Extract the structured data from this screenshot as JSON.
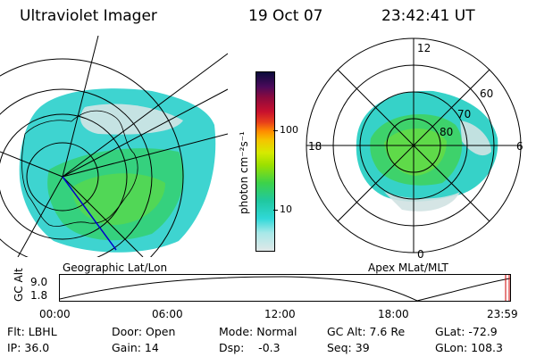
{
  "header": {
    "instrument": "Ultraviolet Imager",
    "date": "19 Oct 07",
    "time": "23:42:41 UT"
  },
  "colorbar": {
    "label": "photon cm⁻²s⁻¹",
    "ticks": [
      "100",
      "10"
    ],
    "colors": [
      "#0b0b3b",
      "#4a0a5a",
      "#8b0a3e",
      "#c8102e",
      "#e8401a",
      "#ff8c00",
      "#f5c400",
      "#d6ea00",
      "#9be000",
      "#3cd24a",
      "#20c8a0",
      "#30d8d8",
      "#a8e8e8",
      "#e0e8e8"
    ]
  },
  "left_panel": {
    "caption": "Geographic Lat/Lon"
  },
  "right_panel": {
    "caption": "Apex MLat/MLT",
    "mlt_labels": [
      "12",
      "18",
      "6",
      "0"
    ],
    "lat_labels": [
      "60",
      "70",
      "80"
    ]
  },
  "timeline": {
    "ylabel": "GC Alt",
    "y_ticks": [
      "9.0",
      "1.8"
    ],
    "x_ticks": [
      "00:00",
      "06:00",
      "12:00",
      "18:00",
      "23:59"
    ]
  },
  "footer": {
    "flt": "Flt: LBHL",
    "ip": "IP: 36.0",
    "door": "Door: Open",
    "gain": "Gain: 14",
    "mode": "Mode: Normal",
    "dsp": "Dsp:    -0.3",
    "gcalt": "GC Alt: 7.6 Re",
    "seq": "Seq: 39",
    "glat": "GLat: -72.9",
    "glon": "GLon: 108.3"
  }
}
